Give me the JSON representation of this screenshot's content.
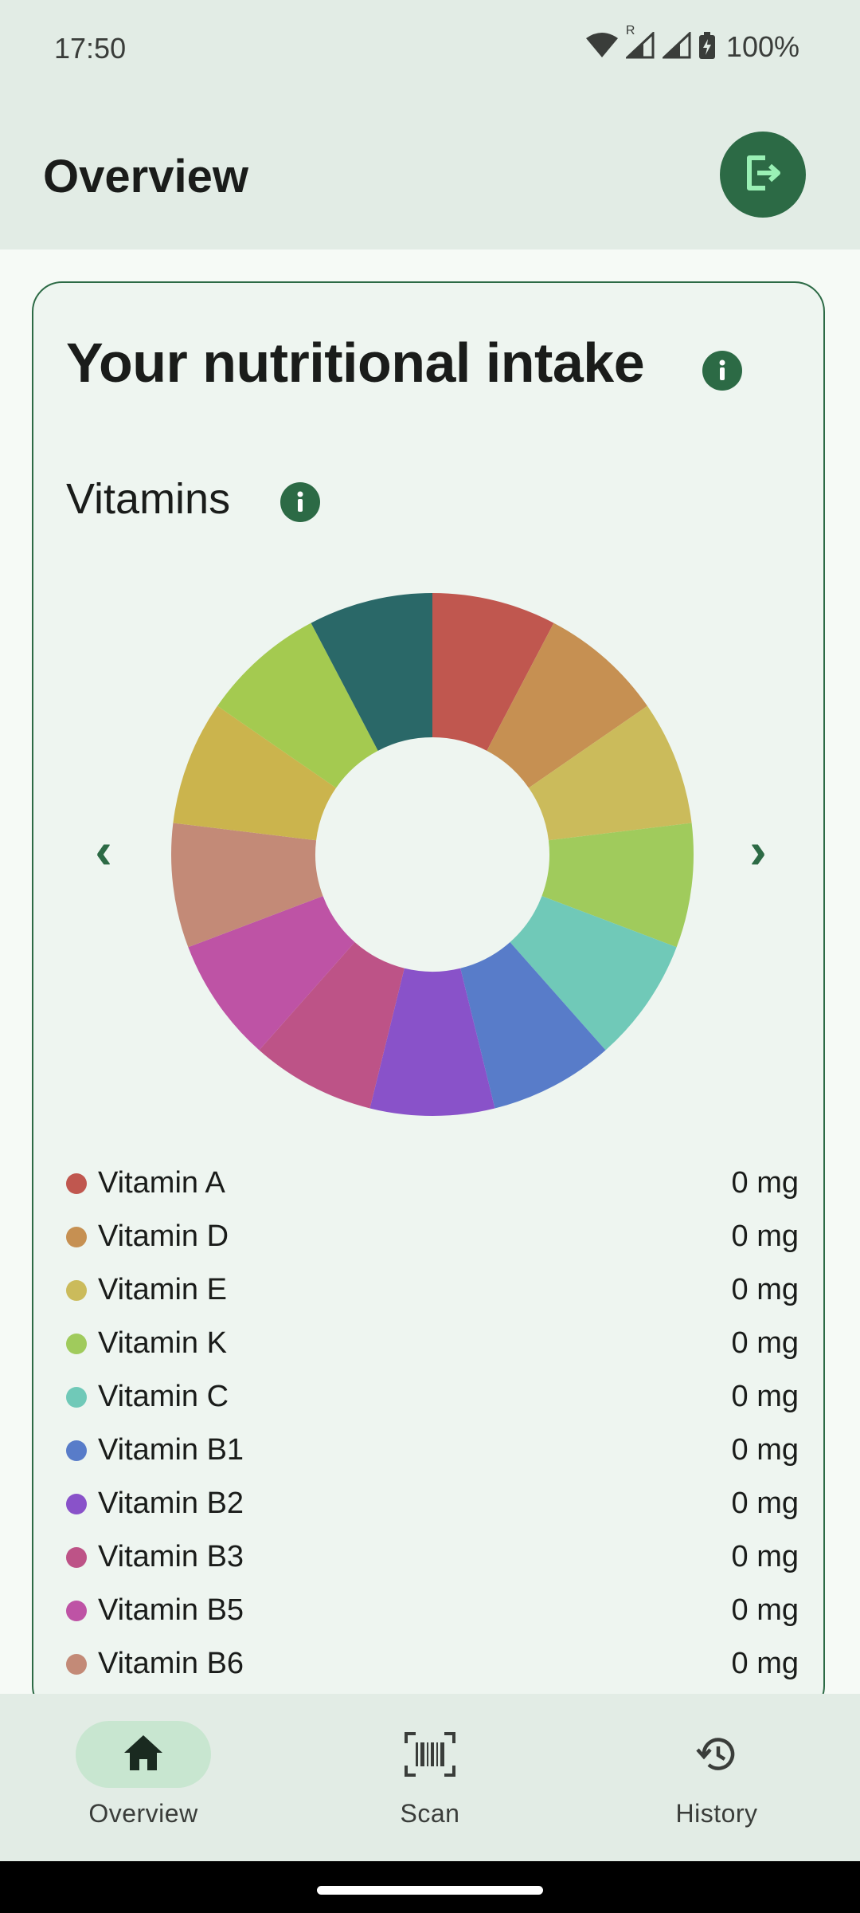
{
  "status_bar": {
    "time": "17:50",
    "roaming_mark": "R",
    "battery": "100%",
    "icons": [
      "wifi-icon",
      "signal-icon",
      "signal-icon-2",
      "battery-charging-icon"
    ]
  },
  "app_bar": {
    "title": "Overview",
    "logout_icon": "logout-icon"
  },
  "card": {
    "title": "Your nutritional intake",
    "info_icon": "info-icon",
    "section_title": "Vitamins",
    "prev_label": "‹",
    "next_label": "›",
    "items": [
      {
        "name": "Vitamin A",
        "value": "0 mg",
        "color": "#c0574f"
      },
      {
        "name": "Vitamin D",
        "value": "0 mg",
        "color": "#c69052"
      },
      {
        "name": "Vitamin E",
        "value": "0 mg",
        "color": "#cbbb5b"
      },
      {
        "name": "Vitamin K",
        "value": "0 mg",
        "color": "#a0cb5c"
      },
      {
        "name": "Vitamin C",
        "value": "0 mg",
        "color": "#70c9b8"
      },
      {
        "name": "Vitamin B1",
        "value": "0 mg",
        "color": "#587cc9"
      },
      {
        "name": "Vitamin B2",
        "value": "0 mg",
        "color": "#8952c9"
      },
      {
        "name": "Vitamin B3",
        "value": "0 mg",
        "color": "#bd5387"
      },
      {
        "name": "Vitamin B5",
        "value": "0 mg",
        "color": "#be53a5"
      },
      {
        "name": "Vitamin B6",
        "value": "0 mg",
        "color": "#c38a77"
      }
    ]
  },
  "chart_data": {
    "type": "pie",
    "note_style": "donut",
    "slices": [
      {
        "color": "#c0574f",
        "value": 1
      },
      {
        "color": "#c69052",
        "value": 1
      },
      {
        "color": "#cbbb5b",
        "value": 1
      },
      {
        "color": "#a0cb5c",
        "value": 1
      },
      {
        "color": "#70c9b8",
        "value": 1
      },
      {
        "color": "#587cc9",
        "value": 1
      },
      {
        "color": "#8952c9",
        "value": 1
      },
      {
        "color": "#bd5387",
        "value": 1
      },
      {
        "color": "#be53a5",
        "value": 1
      },
      {
        "color": "#c38a77",
        "value": 1
      },
      {
        "color": "#cbb44d",
        "value": 1
      },
      {
        "color": "#a4ca50",
        "value": 1
      },
      {
        "color": "#2a6868",
        "value": 1
      }
    ]
  },
  "bottom_nav": {
    "items": [
      {
        "label": "Overview",
        "icon": "home-icon",
        "selected": true
      },
      {
        "label": "Scan",
        "icon": "barcode-scan-icon",
        "selected": false
      },
      {
        "label": "History",
        "icon": "history-icon",
        "selected": false
      }
    ]
  }
}
